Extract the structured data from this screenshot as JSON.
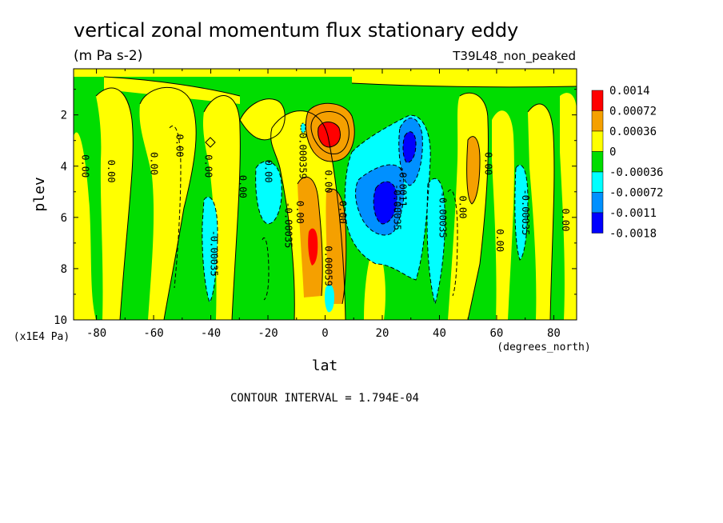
{
  "title": "vertical zonal momentum flux stationary eddy",
  "units": "(m Pa s-2)",
  "run_label": "T39L48_non_peaked",
  "contour_interval_text": "CONTOUR INTERVAL = 1.794E-04",
  "chart_data": {
    "type": "heatmap",
    "xlabel": "lat",
    "x_unit": "(degrees_north)",
    "ylabel": "plev",
    "y_unit": "(x1E4 Pa)",
    "xlim": [
      -88,
      88
    ],
    "ylim": [
      10,
      0.2
    ],
    "x_ticks": [
      -80,
      -60,
      -40,
      -20,
      0,
      20,
      40,
      60,
      80
    ],
    "y_ticks": [
      2,
      4,
      6,
      8,
      10
    ],
    "legend": {
      "position": "right",
      "levels": [
        {
          "label": "0.0014",
          "color": "#ff0000"
        },
        {
          "label": "0.00072",
          "color": "#f5a000"
        },
        {
          "label": "0.00036",
          "color": "#ffff00"
        },
        {
          "label": "0",
          "color": "#00dd00"
        },
        {
          "label": "-0.00036",
          "color": "#00ffff"
        },
        {
          "label": "-0.00072",
          "color": "#0090ff"
        },
        {
          "label": "-0.0011",
          "color": "#0000ff"
        },
        {
          "label": "-0.0018",
          "color": null
        }
      ]
    },
    "contour_labels": [
      {
        "text": "0.00",
        "lat": -85,
        "plev": 4.0
      },
      {
        "text": "0.00",
        "lat": -76,
        "plev": 4.2
      },
      {
        "text": "0.00",
        "lat": -61,
        "plev": 3.9
      },
      {
        "text": "0.00",
        "lat": -52,
        "plev": 3.2
      },
      {
        "text": "0.00",
        "lat": -42,
        "plev": 4.0
      },
      {
        "text": "0.00",
        "lat": -30,
        "plev": 4.8
      },
      {
        "text": "0.00",
        "lat": -21,
        "plev": 4.2
      },
      {
        "text": "-0.00035",
        "lat": -40,
        "plev": 7.4
      },
      {
        "text": "-0.00035",
        "lat": -14,
        "plev": 6.3
      },
      {
        "text": "0.00",
        "lat": -10,
        "plev": 5.8
      },
      {
        "text": "0.000359",
        "lat": -9,
        "plev": 3.6
      },
      {
        "text": "0.00",
        "lat": 0,
        "plev": 4.6
      },
      {
        "text": "0.00",
        "lat": 5,
        "plev": 5.8
      },
      {
        "text": "0.00059",
        "lat": 0,
        "plev": 7.9
      },
      {
        "text": "-0.0011",
        "lat": 26,
        "plev": 4.8
      },
      {
        "text": "-0.00035",
        "lat": 24,
        "plev": 5.6
      },
      {
        "text": "-0.00035",
        "lat": 40,
        "plev": 5.9
      },
      {
        "text": "0.00",
        "lat": 47,
        "plev": 5.6
      },
      {
        "text": "0.00",
        "lat": 56,
        "plev": 3.9
      },
      {
        "text": "0.00",
        "lat": 60,
        "plev": 6.9
      },
      {
        "text": "-0.00035",
        "lat": 69,
        "plev": 5.8
      },
      {
        "text": "0.00",
        "lat": 83,
        "plev": 6.1
      }
    ],
    "features": [
      {
        "sign": "positive",
        "level": "0.0014",
        "lat": 1,
        "plev": 2.6
      },
      {
        "sign": "positive",
        "level": "0.00072",
        "lat": -3,
        "plev": 6.9
      },
      {
        "sign": "positive",
        "level": "0.00072",
        "lat": 7,
        "plev": 5.8
      },
      {
        "sign": "positive",
        "level": "0.00036",
        "lat": 52,
        "plev": 4.0
      },
      {
        "sign": "negative",
        "level": "-0.0011",
        "lat": 23,
        "plev": 5.0
      },
      {
        "sign": "negative",
        "level": "-0.0011",
        "lat": 29,
        "plev": 3.2
      },
      {
        "sign": "negative",
        "level": "-0.00036",
        "lat": -40,
        "plev": 7.4
      },
      {
        "sign": "negative",
        "level": "-0.00036",
        "lat": -20,
        "plev": 5.8
      },
      {
        "sign": "negative",
        "level": "-0.00036",
        "lat": 68,
        "plev": 6.0
      }
    ]
  }
}
